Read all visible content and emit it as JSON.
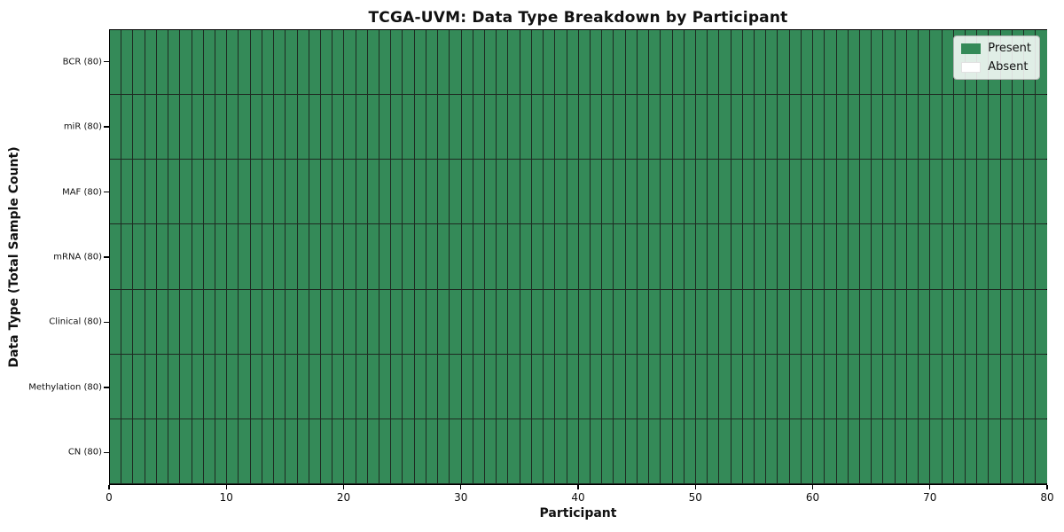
{
  "chart_data": {
    "type": "heatmap",
    "title": "TCGA-UVM: Data Type Breakdown by Participant",
    "xlabel": "Participant",
    "ylabel": "Data Type (Total Sample Count)",
    "xlim": [
      0,
      80
    ],
    "x_ticks": [
      0,
      10,
      20,
      30,
      40,
      50,
      60,
      70,
      80
    ],
    "n_participants": 80,
    "grid_on": false,
    "legend_position": "upper right",
    "rows": [
      {
        "label": "BCR (80)",
        "present_count": 80
      },
      {
        "label": "miR (80)",
        "present_count": 80
      },
      {
        "label": "MAF (80)",
        "present_count": 80
      },
      {
        "label": "mRNA (80)",
        "present_count": 80
      },
      {
        "label": "Clinical (80)",
        "present_count": 80
      },
      {
        "label": "Methylation (80)",
        "present_count": 80
      },
      {
        "label": "CN (80)",
        "present_count": 80
      }
    ],
    "legend": [
      {
        "label": "Present",
        "color": "#348a58"
      },
      {
        "label": "Absent",
        "color": "#ffffff"
      }
    ],
    "colors": {
      "present": "#348a58",
      "absent": "#ffffff",
      "cell_border": "#1e2a22",
      "frame": "#000000"
    }
  }
}
